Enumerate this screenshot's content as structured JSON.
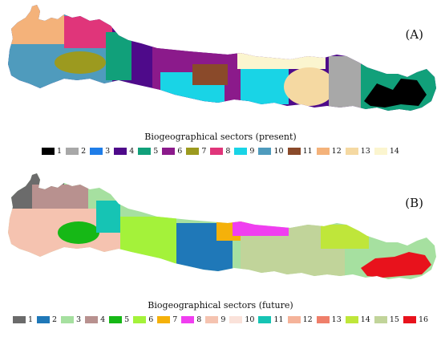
{
  "panel_a": {
    "label": "(A)",
    "caption": "Biogeographical sectors (present)",
    "legend": [
      {
        "label": "1",
        "color": "#000000"
      },
      {
        "label": "2",
        "color": "#a8a8a8"
      },
      {
        "label": "3",
        "color": "#1f7de8"
      },
      {
        "label": "4",
        "color": "#4e0a8a"
      },
      {
        "label": "5",
        "color": "#11a07a"
      },
      {
        "label": "6",
        "color": "#8b1a8b"
      },
      {
        "label": "7",
        "color": "#9c9a1f"
      },
      {
        "label": "8",
        "color": "#e0357a"
      },
      {
        "label": "9",
        "color": "#19d4e6"
      },
      {
        "label": "10",
        "color": "#4f9bbd"
      },
      {
        "label": "11",
        "color": "#8a4a2a"
      },
      {
        "label": "12",
        "color": "#f4b27a"
      },
      {
        "label": "13",
        "color": "#f5d9a2"
      },
      {
        "label": "14",
        "color": "#fbf5cf"
      }
    ]
  },
  "panel_b": {
    "label": "(B)",
    "caption": "Biogeographical sectors (future)",
    "legend": [
      {
        "label": "1",
        "color": "#6b6b6b"
      },
      {
        "label": "2",
        "color": "#1f78b8"
      },
      {
        "label": "3",
        "color": "#a6e0a0"
      },
      {
        "label": "4",
        "color": "#b8918f"
      },
      {
        "label": "5",
        "color": "#16b816"
      },
      {
        "label": "6",
        "color": "#a4f23a"
      },
      {
        "label": "7",
        "color": "#f5b10a"
      },
      {
        "label": "8",
        "color": "#f03ef0"
      },
      {
        "label": "9",
        "color": "#f5c3b0"
      },
      {
        "label": "10",
        "color": "#fae2da"
      },
      {
        "label": "11",
        "color": "#16c4b4"
      },
      {
        "label": "12",
        "color": "#f5b39a"
      },
      {
        "label": "13",
        "color": "#ef7f6a"
      },
      {
        "label": "14",
        "color": "#bfe63a"
      },
      {
        "label": "15",
        "color": "#c1d49a"
      },
      {
        "label": "16",
        "color": "#e8121c"
      }
    ]
  }
}
